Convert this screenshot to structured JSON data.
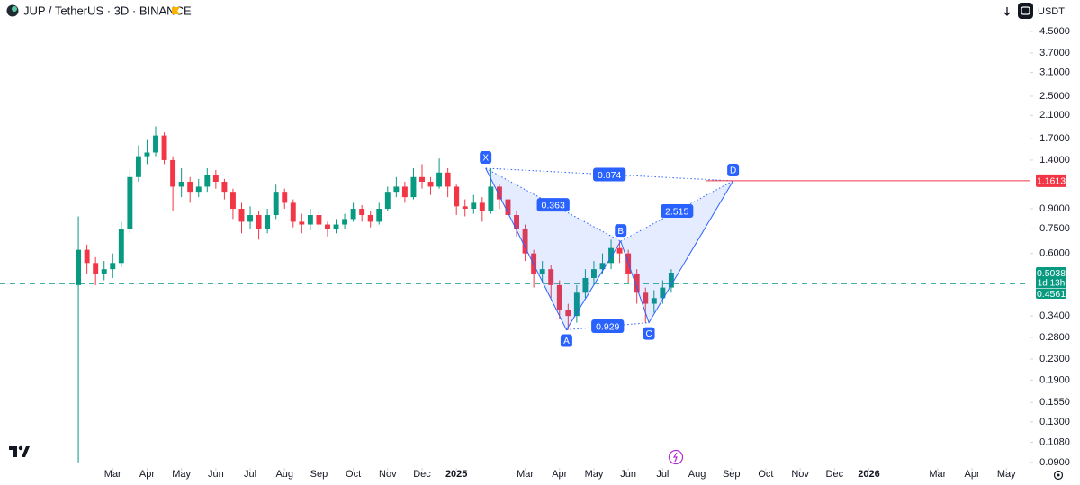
{
  "header": {
    "symbol": "JUP / TetherUS · 3D · BINANCE",
    "currency": "USDT"
  },
  "chart_data": {
    "type": "candlestick",
    "log_scale": true,
    "colors": {
      "up": "#089981",
      "down": "#f23645",
      "pattern": "#2962ff"
    },
    "x": [
      1.0,
      1.25,
      1.5,
      1.75,
      2.0,
      2.25,
      2.5,
      2.75,
      3.0,
      3.25,
      3.5,
      3.75,
      4.0,
      4.25,
      4.5,
      4.75,
      5.0,
      5.25,
      5.5,
      5.75,
      6.0,
      6.25,
      6.5,
      6.75,
      7.0,
      7.25,
      7.5,
      7.75,
      8.0,
      8.25,
      8.5,
      8.75,
      9.0,
      9.25,
      9.5,
      9.75,
      10.0,
      10.25,
      10.5,
      10.75,
      11.0,
      11.25,
      11.5,
      11.75,
      12.0,
      12.25,
      12.5,
      12.75,
      13.0,
      13.25,
      13.5,
      13.75,
      14.0,
      14.25,
      14.5,
      14.75,
      15.0,
      15.25,
      15.5,
      15.75,
      16.0,
      16.25,
      16.5,
      16.75,
      17.0,
      17.25,
      17.5,
      17.75,
      18.0,
      18.25
    ],
    "open": [
      0.45,
      0.62,
      0.55,
      0.5,
      0.52,
      0.55,
      0.75,
      1.2,
      1.45,
      1.5,
      1.75,
      1.4,
      1.1,
      1.15,
      1.05,
      1.1,
      1.22,
      1.15,
      1.05,
      0.9,
      0.8,
      0.85,
      0.75,
      0.85,
      1.05,
      0.95,
      0.8,
      0.78,
      0.85,
      0.78,
      0.75,
      0.78,
      0.82,
      0.9,
      0.85,
      0.8,
      0.9,
      1.05,
      1.1,
      1.0,
      1.2,
      1.15,
      1.1,
      1.25,
      1.1,
      0.92,
      0.9,
      0.95,
      0.88,
      1.1,
      0.98,
      0.85,
      0.75,
      0.6,
      0.5,
      0.52,
      0.45,
      0.36,
      0.34,
      0.42,
      0.48,
      0.52,
      0.55,
      0.63,
      0.6,
      0.5,
      0.42,
      0.38,
      0.4,
      0.44
    ],
    "high": [
      0.84,
      0.65,
      0.58,
      0.56,
      0.6,
      0.8,
      1.28,
      1.6,
      1.68,
      1.9,
      1.8,
      1.45,
      1.3,
      1.2,
      1.18,
      1.3,
      1.28,
      1.18,
      1.08,
      0.95,
      0.92,
      0.88,
      0.9,
      1.12,
      1.08,
      0.98,
      0.86,
      0.9,
      0.88,
      0.8,
      0.82,
      0.86,
      0.95,
      0.93,
      0.88,
      0.95,
      1.1,
      1.2,
      1.15,
      1.3,
      1.35,
      1.2,
      1.42,
      1.3,
      1.12,
      0.98,
      1.02,
      1.0,
      1.3,
      1.12,
      1.0,
      0.88,
      0.78,
      0.62,
      0.56,
      0.54,
      0.47,
      0.38,
      0.45,
      0.52,
      0.56,
      0.6,
      0.68,
      0.67,
      0.62,
      0.52,
      0.44,
      0.43,
      0.47,
      0.52
    ],
    "low": [
      0.09,
      0.5,
      0.45,
      0.47,
      0.48,
      0.53,
      0.72,
      1.15,
      1.35,
      1.45,
      1.35,
      0.88,
      1.0,
      0.95,
      1.0,
      1.05,
      1.08,
      0.98,
      0.82,
      0.72,
      0.75,
      0.68,
      0.72,
      0.82,
      0.9,
      0.76,
      0.72,
      0.74,
      0.74,
      0.7,
      0.72,
      0.75,
      0.8,
      0.8,
      0.76,
      0.78,
      0.88,
      1.0,
      0.95,
      0.98,
      1.08,
      1.02,
      1.08,
      1.0,
      0.85,
      0.84,
      0.86,
      0.8,
      0.86,
      0.9,
      0.78,
      0.7,
      0.56,
      0.44,
      0.46,
      0.4,
      0.33,
      0.3,
      0.32,
      0.4,
      0.45,
      0.5,
      0.52,
      0.55,
      0.46,
      0.38,
      0.32,
      0.35,
      0.38,
      0.42
    ],
    "close": [
      0.62,
      0.55,
      0.5,
      0.52,
      0.55,
      0.75,
      1.2,
      1.45,
      1.5,
      1.75,
      1.4,
      1.1,
      1.15,
      1.05,
      1.1,
      1.22,
      1.15,
      1.05,
      0.9,
      0.8,
      0.85,
      0.75,
      0.85,
      1.05,
      0.95,
      0.8,
      0.78,
      0.85,
      0.78,
      0.75,
      0.78,
      0.82,
      0.9,
      0.85,
      0.8,
      0.9,
      1.05,
      1.1,
      1.0,
      1.2,
      1.15,
      1.1,
      1.25,
      1.1,
      0.92,
      0.9,
      0.95,
      0.88,
      1.1,
      0.98,
      0.85,
      0.75,
      0.6,
      0.5,
      0.52,
      0.45,
      0.36,
      0.34,
      0.42,
      0.48,
      0.52,
      0.55,
      0.63,
      0.6,
      0.5,
      0.42,
      0.38,
      0.4,
      0.44,
      0.5038
    ],
    "xlim": [
      -1.28,
      28.7
    ],
    "xticks": [
      {
        "value": 2,
        "label": "Mar"
      },
      {
        "value": 3,
        "label": "Apr"
      },
      {
        "value": 4,
        "label": "May"
      },
      {
        "value": 5,
        "label": "Jun"
      },
      {
        "value": 6,
        "label": "Jul"
      },
      {
        "value": 7,
        "label": "Aug"
      },
      {
        "value": 8,
        "label": "Sep"
      },
      {
        "value": 9,
        "label": "Oct"
      },
      {
        "value": 10,
        "label": "Nov"
      },
      {
        "value": 11,
        "label": "Dec"
      },
      {
        "value": 12,
        "label": "2025"
      },
      {
        "value": 14,
        "label": "Mar"
      },
      {
        "value": 15,
        "label": "Apr"
      },
      {
        "value": 16,
        "label": "May"
      },
      {
        "value": 17,
        "label": "Jun"
      },
      {
        "value": 18,
        "label": "Jul"
      },
      {
        "value": 19,
        "label": "Aug"
      },
      {
        "value": 20,
        "label": "Sep"
      },
      {
        "value": 21,
        "label": "Oct"
      },
      {
        "value": 22,
        "label": "Nov"
      },
      {
        "value": 23,
        "label": "Dec"
      },
      {
        "value": 24,
        "label": "2026"
      },
      {
        "value": 26,
        "label": "Mar"
      },
      {
        "value": 27,
        "label": "Apr"
      },
      {
        "value": 28,
        "label": "May"
      }
    ],
    "ylim": [
      0.0856,
      5.99
    ],
    "yticks": [
      {
        "value": 4.5,
        "label": "4.5000"
      },
      {
        "value": 3.7,
        "label": "3.7000"
      },
      {
        "value": 3.1,
        "label": "3.1000"
      },
      {
        "value": 2.5,
        "label": "2.5000"
      },
      {
        "value": 2.1,
        "label": "2.1000"
      },
      {
        "value": 1.7,
        "label": "1.7000"
      },
      {
        "value": 1.4,
        "label": "1.4000"
      },
      {
        "value": 0.9,
        "label": "0.9000"
      },
      {
        "value": 0.75,
        "label": "0.7500"
      },
      {
        "value": 0.6,
        "label": "0.6000"
      },
      {
        "value": 0.34,
        "label": "0.3400"
      },
      {
        "value": 0.28,
        "label": "0.2800"
      },
      {
        "value": 0.23,
        "label": "0.2300"
      },
      {
        "value": 0.19,
        "label": "0.1900"
      },
      {
        "value": 0.155,
        "label": "0.1550"
      },
      {
        "value": 0.13,
        "label": "0.1300"
      },
      {
        "value": 0.108,
        "label": "0.1080"
      },
      {
        "value": 0.09,
        "label": "0.0900"
      }
    ],
    "pattern": {
      "points": [
        {
          "label": "X",
          "x": 12.85,
          "y": 1.3
        },
        {
          "label": "A",
          "x": 15.2,
          "y": 0.3
        },
        {
          "label": "B",
          "x": 16.78,
          "y": 0.67
        },
        {
          "label": "C",
          "x": 17.6,
          "y": 0.32
        },
        {
          "label": "D",
          "x": 20.05,
          "y": 1.16
        }
      ],
      "ratios": {
        "XD": 0.874,
        "XB": 0.363,
        "BD": 2.515,
        "AC": 0.929
      }
    },
    "target_price": 1.1613,
    "last_price": 0.5038,
    "countdown": "1d 13h",
    "level_price": 0.4561
  }
}
